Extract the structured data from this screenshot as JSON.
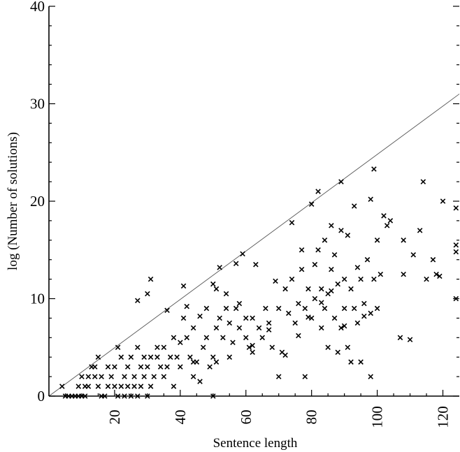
{
  "chart_data": {
    "type": "scatter",
    "title": "",
    "xlabel": "Sentence length",
    "ylabel": "log (Number of solutions)",
    "xlim": [
      0,
      125
    ],
    "ylim": [
      0,
      40
    ],
    "x_ticks": [
      "20",
      "40",
      "60",
      "80",
      "100",
      "120"
    ],
    "x_tick_values": [
      20,
      40,
      60,
      80,
      100,
      120
    ],
    "y_ticks": [
      "0",
      "10",
      "20",
      "30",
      "40"
    ],
    "y_tick_values": [
      0,
      10,
      20,
      30,
      40
    ],
    "grid": false,
    "marker": "x",
    "reference_line": {
      "x": [
        0,
        125
      ],
      "y": [
        0,
        31
      ]
    },
    "series": [
      {
        "points": [
          [
            4,
            1
          ],
          [
            5,
            0
          ],
          [
            6,
            0
          ],
          [
            7,
            0
          ],
          [
            8,
            0
          ],
          [
            9,
            0
          ],
          [
            10,
            0
          ],
          [
            11,
            0
          ],
          [
            9,
            1
          ],
          [
            10,
            2
          ],
          [
            11,
            1
          ],
          [
            12,
            2
          ],
          [
            12,
            1
          ],
          [
            13,
            3
          ],
          [
            14,
            3
          ],
          [
            14,
            2
          ],
          [
            15,
            1
          ],
          [
            15,
            4
          ],
          [
            16,
            2
          ],
          [
            16,
            0
          ],
          [
            17,
            0
          ],
          [
            18,
            1
          ],
          [
            18,
            3
          ],
          [
            19,
            2
          ],
          [
            20,
            3
          ],
          [
            20,
            1
          ],
          [
            21,
            5
          ],
          [
            21,
            0
          ],
          [
            22,
            1
          ],
          [
            22,
            4
          ],
          [
            23,
            2
          ],
          [
            23,
            0
          ],
          [
            24,
            3
          ],
          [
            24,
            1
          ],
          [
            25,
            0
          ],
          [
            25,
            4
          ],
          [
            26,
            2
          ],
          [
            26,
            1
          ],
          [
            27,
            5
          ],
          [
            27,
            0
          ],
          [
            28,
            3
          ],
          [
            28,
            1
          ],
          [
            29,
            4
          ],
          [
            29,
            2
          ],
          [
            30,
            0
          ],
          [
            30,
            3
          ],
          [
            31,
            1
          ],
          [
            31,
            4
          ],
          [
            32,
            2
          ],
          [
            33,
            5
          ],
          [
            27,
            9.8
          ],
          [
            30,
            10.5
          ],
          [
            31,
            12
          ],
          [
            33,
            4
          ],
          [
            34,
            3
          ],
          [
            35,
            2
          ],
          [
            35,
            5
          ],
          [
            36,
            8.8
          ],
          [
            36,
            3
          ],
          [
            37,
            4
          ],
          [
            38,
            1
          ],
          [
            38,
            6
          ],
          [
            39,
            4
          ],
          [
            40,
            5.5
          ],
          [
            40,
            3
          ],
          [
            41,
            8
          ],
          [
            41,
            11.3
          ],
          [
            42,
            6
          ],
          [
            42,
            9.2
          ],
          [
            43,
            4
          ],
          [
            44,
            2
          ],
          [
            44,
            7
          ],
          [
            45,
            3.5
          ],
          [
            46,
            1.5
          ],
          [
            46,
            8.2
          ],
          [
            47,
            5
          ],
          [
            48,
            9
          ],
          [
            48,
            6
          ],
          [
            49,
            3
          ],
          [
            50,
            11.5
          ],
          [
            50,
            4
          ],
          [
            50,
            0
          ],
          [
            51,
            7
          ],
          [
            51,
            11
          ],
          [
            51,
            3.5
          ],
          [
            52,
            13.2
          ],
          [
            52,
            8
          ],
          [
            53,
            6
          ],
          [
            54,
            9
          ],
          [
            54,
            10.5
          ],
          [
            55,
            7.5
          ],
          [
            56,
            5.5
          ],
          [
            57,
            9
          ],
          [
            57,
            13.6
          ],
          [
            58,
            7
          ],
          [
            58,
            9.5
          ],
          [
            59,
            14.6
          ],
          [
            60,
            6
          ],
          [
            60,
            8
          ],
          [
            61,
            5
          ],
          [
            62,
            4.5
          ],
          [
            62,
            8
          ],
          [
            63,
            13.5
          ],
          [
            64,
            7
          ],
          [
            65,
            6
          ],
          [
            66,
            9
          ],
          [
            67,
            7.5
          ],
          [
            68,
            5
          ],
          [
            69,
            11.8
          ],
          [
            70,
            9
          ],
          [
            70,
            2
          ],
          [
            71,
            4.5
          ],
          [
            72,
            11
          ],
          [
            73,
            8.5
          ],
          [
            74,
            17.8
          ],
          [
            74,
            12
          ],
          [
            75,
            7.5
          ],
          [
            76,
            9.5
          ],
          [
            77,
            15
          ],
          [
            77,
            13
          ],
          [
            78,
            2
          ],
          [
            78,
            9
          ],
          [
            79,
            11
          ],
          [
            80,
            19.7
          ],
          [
            80,
            8
          ],
          [
            81,
            10
          ],
          [
            81,
            13.5
          ],
          [
            82,
            21
          ],
          [
            82,
            15
          ],
          [
            83,
            11
          ],
          [
            83,
            7
          ],
          [
            84,
            16
          ],
          [
            84,
            9
          ],
          [
            85,
            10.5
          ],
          [
            85,
            5
          ],
          [
            86,
            17.5
          ],
          [
            86,
            13
          ],
          [
            87,
            14.5
          ],
          [
            87,
            8
          ],
          [
            88,
            4.5
          ],
          [
            88,
            11.5
          ],
          [
            89,
            22
          ],
          [
            89,
            17
          ],
          [
            89,
            7
          ],
          [
            90,
            12
          ],
          [
            90,
            9
          ],
          [
            91,
            16.5
          ],
          [
            91,
            5
          ],
          [
            92,
            11
          ],
          [
            92,
            3.5
          ],
          [
            93,
            19.5
          ],
          [
            93,
            9
          ],
          [
            94,
            7.5
          ],
          [
            95,
            12
          ],
          [
            95,
            3.5
          ],
          [
            96,
            9.5
          ],
          [
            97,
            14
          ],
          [
            98,
            20.2
          ],
          [
            98,
            8.5
          ],
          [
            98,
            2
          ],
          [
            99,
            23.3
          ],
          [
            99,
            12
          ],
          [
            100,
            16
          ],
          [
            100,
            9
          ],
          [
            101,
            12.5
          ],
          [
            102,
            18.5
          ],
          [
            103,
            17.5
          ],
          [
            104,
            18
          ],
          [
            107,
            6
          ],
          [
            108,
            16
          ],
          [
            108,
            12.5
          ],
          [
            110,
            5.8
          ],
          [
            111,
            14.5
          ],
          [
            113,
            17
          ],
          [
            114,
            22
          ],
          [
            115,
            12
          ],
          [
            117,
            14
          ],
          [
            118,
            12.5
          ],
          [
            119,
            12.3
          ],
          [
            120,
            20
          ],
          [
            124,
            19.3
          ],
          [
            124,
            15.5
          ],
          [
            124,
            14.8
          ],
          [
            124,
            10
          ],
          [
            44,
            3.5
          ],
          [
            55,
            4
          ],
          [
            62,
            5.2
          ],
          [
            67,
            6.8
          ],
          [
            72,
            4.2
          ],
          [
            76,
            6.2
          ],
          [
            79,
            8.1
          ],
          [
            83,
            9.6
          ],
          [
            86,
            10.8
          ],
          [
            90,
            7.2
          ],
          [
            94,
            13.2
          ],
          [
            96,
            8.2
          ]
        ]
      }
    ]
  }
}
